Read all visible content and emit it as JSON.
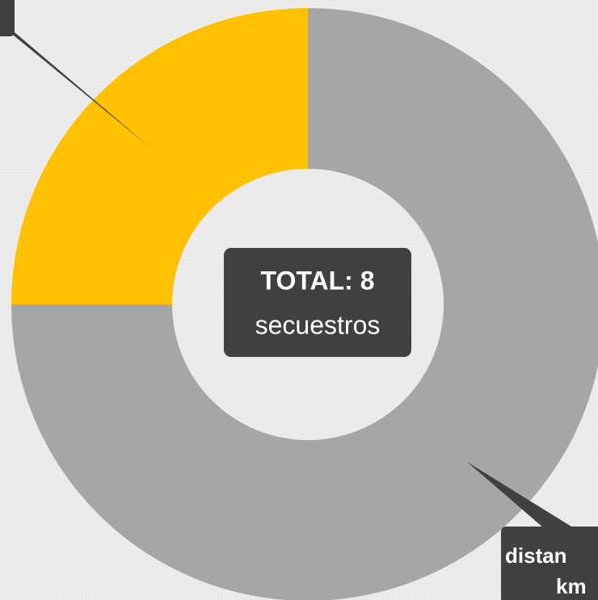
{
  "chart_data": {
    "type": "pie",
    "donut": true,
    "values": [
      6,
      2
    ],
    "colors": [
      "#a6a6a6",
      "#ffc000"
    ],
    "center_title": "TOTAL: 8",
    "center_subtitle": "secuestros",
    "callout_label_line1": "distan",
    "callout_label_line2": "km"
  }
}
